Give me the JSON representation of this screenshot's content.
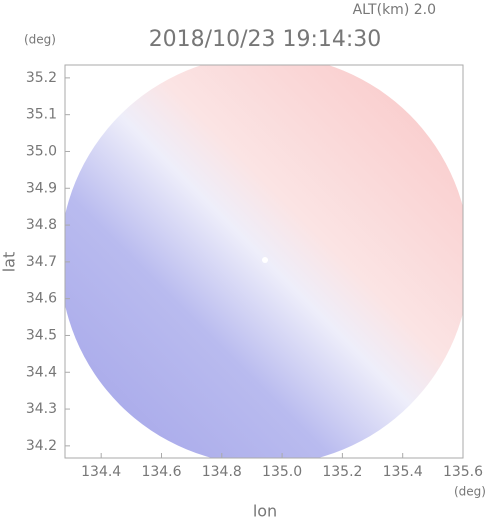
{
  "chart_data": {
    "type": "radar-image",
    "altitude": "ALT(km)  2.0",
    "title": "2018/10/23 19:14:30",
    "y_unit": "(deg)",
    "x_unit": "(deg)",
    "ylabel": "lat",
    "xlabel": "lon",
    "xlim": [
      134.28,
      135.6
    ],
    "xticks": [
      {
        "value": 134.4,
        "label": "134.4"
      },
      {
        "value": 134.6,
        "label": "134.6"
      },
      {
        "value": 134.8,
        "label": "134.8"
      },
      {
        "value": 135.0,
        "label": "135.0"
      },
      {
        "value": 135.2,
        "label": "135.2"
      },
      {
        "value": 135.4,
        "label": "135.4"
      },
      {
        "value": 135.6,
        "label": "135.6"
      }
    ],
    "ylim": [
      34.167,
      35.235
    ],
    "yticks": [
      {
        "value": 34.2,
        "label": "34.2"
      },
      {
        "value": 34.3,
        "label": "34.3"
      },
      {
        "value": 34.4,
        "label": "34.4"
      },
      {
        "value": 34.5,
        "label": "34.5"
      },
      {
        "value": 34.6,
        "label": "34.6"
      },
      {
        "value": 34.7,
        "label": "34.7"
      },
      {
        "value": 34.8,
        "label": "34.8"
      },
      {
        "value": 34.9,
        "label": "34.9"
      },
      {
        "value": 35.0,
        "label": "35.0"
      },
      {
        "value": 35.1,
        "label": "35.1"
      },
      {
        "value": 35.2,
        "label": "35.2"
      }
    ]
  }
}
